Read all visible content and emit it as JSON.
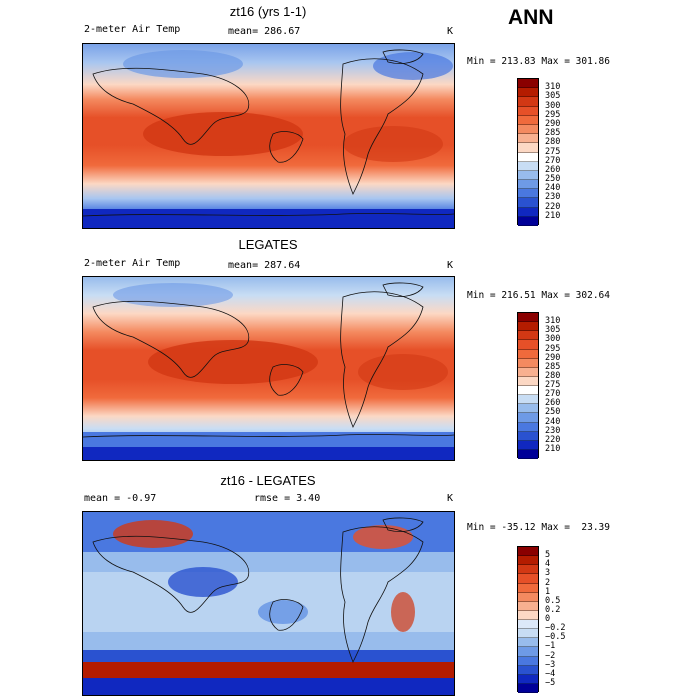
{
  "season": "ANN",
  "panels": [
    {
      "title": "zt16 (yrs 1-1)",
      "left_label": "2-meter Air Temp",
      "center_label": "mean= 286.67",
      "unit": "K",
      "minmax": "Min = 213.83 Max = 301.86"
    },
    {
      "title": "LEGATES",
      "left_label": "2-meter Air Temp",
      "center_label": "mean= 287.64",
      "unit": "K",
      "minmax": "Min = 216.51 Max = 302.64"
    },
    {
      "title": "zt16 - LEGATES",
      "left_label": "mean =   -0.97",
      "center_label": "rmse =    3.40",
      "unit": "K",
      "minmax": "Min = -35.12 Max =  23.39"
    }
  ],
  "colorbars": {
    "temperature": {
      "labels": [
        "310",
        "305",
        "300",
        "295",
        "290",
        "285",
        "280",
        "275",
        "270",
        "260",
        "250",
        "240",
        "230",
        "220",
        "210"
      ],
      "colors": [
        "#8a0000",
        "#b41c00",
        "#d23814",
        "#e65028",
        "#f06a3c",
        "#f48a60",
        "#f8b090",
        "#fcd8c4",
        "#ffffff",
        "#c8ddf4",
        "#98bcec",
        "#6e9ae6",
        "#4a78e0",
        "#2a52d0",
        "#1028c0",
        "#000098"
      ]
    },
    "difference": {
      "labels": [
        "5",
        "4",
        "3",
        "2",
        "1",
        "0.5",
        "0.2",
        "0",
        "−0.2",
        "−0.5",
        "−1",
        "−2",
        "−3",
        "−4",
        "−5"
      ],
      "colors": [
        "#8a0000",
        "#b41c00",
        "#d23814",
        "#e65028",
        "#f06a3c",
        "#f48a60",
        "#f8b090",
        "#fcd8c4",
        "#dce8f8",
        "#c8ddf4",
        "#98bcec",
        "#6e9ae6",
        "#4a78e0",
        "#2a52d0",
        "#1028c0",
        "#000098"
      ]
    }
  }
}
